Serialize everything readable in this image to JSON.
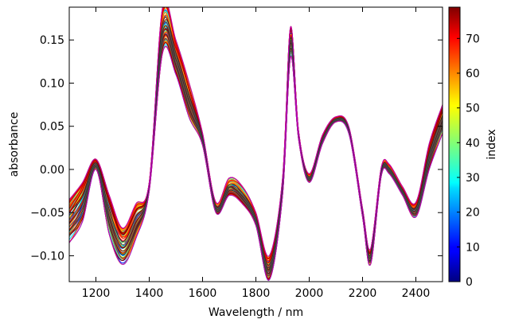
{
  "chart_data": {
    "type": "line",
    "xlabel": "Wavelength / nm",
    "ylabel": "absorbance",
    "xlim": [
      1100,
      2500
    ],
    "ylim": [
      -0.13,
      0.188
    ],
    "xticks": [
      1200,
      1400,
      1600,
      1800,
      2000,
      2200,
      2400
    ],
    "xtick_labels": [
      "1200",
      "1400",
      "1600",
      "1800",
      "2000",
      "2200",
      "2400"
    ],
    "yticks": [
      -0.1,
      -0.05,
      0.0,
      0.05,
      0.1,
      0.15
    ],
    "ytick_labels": [
      "−0.10",
      "−0.05",
      "0.00",
      "0.05",
      "0.10",
      "0.15"
    ],
    "colorbar": {
      "label": "index",
      "range": [
        0,
        79
      ],
      "ticks": [
        0,
        10,
        20,
        30,
        40,
        50,
        60,
        70
      ],
      "tick_labels": [
        "0",
        "10",
        "20",
        "30",
        "40",
        "50",
        "60",
        "70"
      ],
      "colormap": "jet"
    },
    "series_count": 80,
    "x": [
      1100,
      1150,
      1200,
      1250,
      1300,
      1350,
      1400,
      1450,
      1500,
      1550,
      1600,
      1650,
      1700,
      1750,
      1800,
      1850,
      1900,
      1930,
      1960,
      2000,
      2050,
      2100,
      2150,
      2200,
      2230,
      2270,
      2300,
      2350,
      2400,
      2450,
      2500
    ],
    "mean_spectrum": [
      -0.05,
      -0.025,
      0.008,
      -0.04,
      -0.078,
      -0.05,
      -0.02,
      0.155,
      0.13,
      0.08,
      0.035,
      -0.045,
      -0.025,
      -0.035,
      -0.06,
      -0.115,
      -0.02,
      0.16,
      0.04,
      -0.01,
      0.035,
      0.058,
      0.045,
      -0.05,
      -0.1,
      -0.005,
      0.0,
      -0.025,
      -0.045,
      0.02,
      0.07
    ],
    "lowest_spectrum": [
      -0.085,
      -0.06,
      0.0,
      -0.075,
      -0.11,
      -0.08,
      -0.025,
      0.135,
      0.11,
      0.06,
      0.028,
      -0.05,
      -0.03,
      -0.04,
      -0.065,
      -0.128,
      -0.03,
      0.13,
      0.035,
      -0.015,
      0.03,
      0.055,
      0.04,
      -0.055,
      -0.11,
      -0.008,
      -0.005,
      -0.03,
      -0.055,
      0.0,
      0.042
    ],
    "highest_spectrum": [
      -0.035,
      -0.015,
      0.012,
      -0.03,
      -0.068,
      -0.04,
      -0.015,
      0.188,
      0.15,
      0.1,
      0.042,
      -0.038,
      -0.01,
      -0.02,
      -0.05,
      -0.1,
      -0.01,
      0.165,
      0.045,
      -0.005,
      0.04,
      0.061,
      0.048,
      -0.045,
      -0.092,
      0.002,
      0.006,
      -0.02,
      -0.038,
      0.03,
      0.075
    ],
    "outlier_spectrum_color": "#c000c0"
  }
}
